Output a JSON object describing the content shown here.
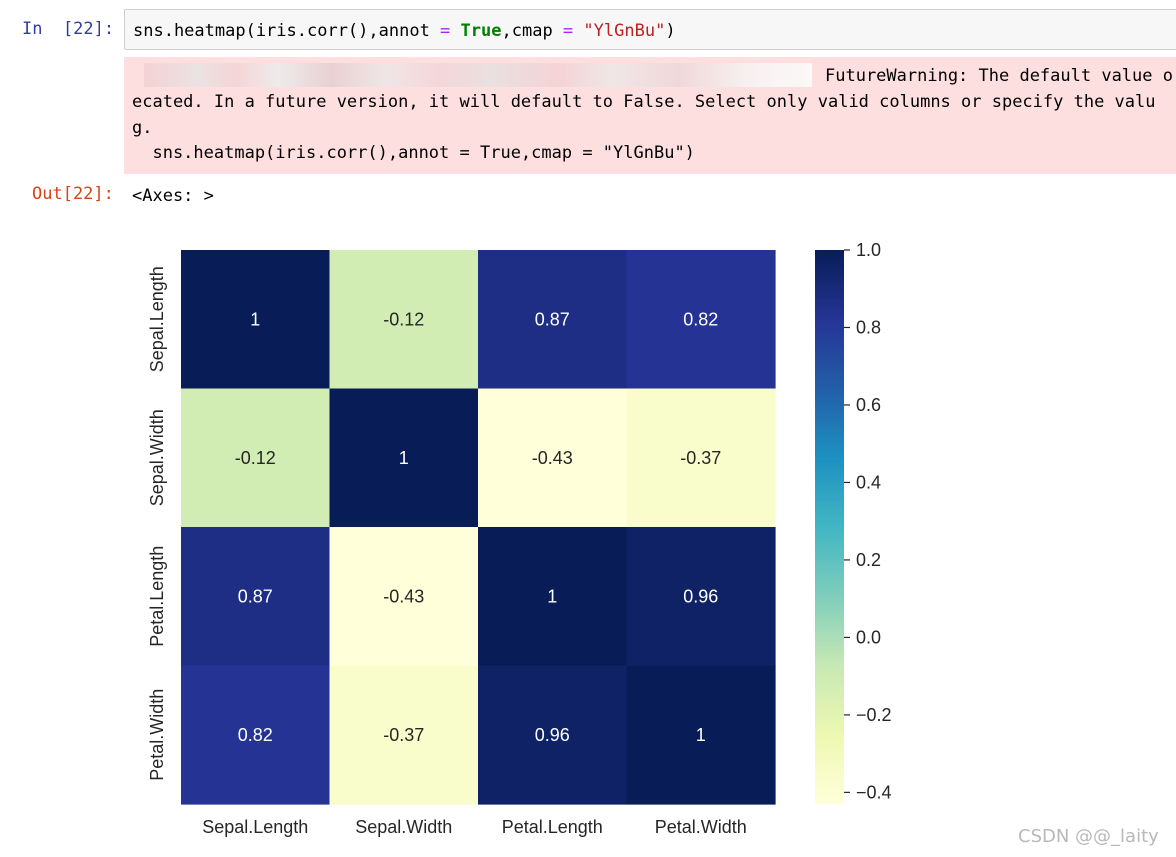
{
  "cell": {
    "in_prompt": "In  [22]:",
    "out_prompt": "Out[22]:",
    "code": {
      "part1": "sns.heatmap(iris.corr(),annot ",
      "eq1": "=",
      "sp1": " ",
      "kw_true": "True",
      "part2": ",cmap ",
      "eq2": "=",
      "sp2": " ",
      "str_cmap": "\"YlGnBu\"",
      "part3": ")"
    },
    "stderr": {
      "line1": "FutureWarning: The default value o",
      "line2": "ecated. In a future version, it will default to False. Select only valid columns or specify the valu",
      "line3": "g.",
      "line4": "  sns.heatmap(iris.corr(),annot = True,cmap = \"YlGnBu\")"
    },
    "output_text": "<Axes: >"
  },
  "chart_data": {
    "type": "heatmap",
    "title": "",
    "xlabel": "",
    "ylabel": "",
    "categories_x": [
      "Sepal.Length",
      "Sepal.Width",
      "Petal.Length",
      "Petal.Width"
    ],
    "categories_y": [
      "Sepal.Length",
      "Sepal.Width",
      "Petal.Length",
      "Petal.Width"
    ],
    "values": [
      [
        1,
        -0.12,
        0.87,
        0.82
      ],
      [
        -0.12,
        1,
        -0.43,
        -0.37
      ],
      [
        0.87,
        -0.43,
        1,
        0.96
      ],
      [
        0.82,
        -0.37,
        0.96,
        1
      ]
    ],
    "annotations": [
      [
        "1",
        "-0.12",
        "0.87",
        "0.82"
      ],
      [
        "-0.12",
        "1",
        "-0.43",
        "-0.37"
      ],
      [
        "0.87",
        "-0.43",
        "1",
        "0.96"
      ],
      [
        "0.82",
        "-0.37",
        "0.96",
        "1"
      ]
    ],
    "colormap": "YlGnBu",
    "vmin": -0.43,
    "vmax": 1.0,
    "colorbar_ticks": [
      1.0,
      0.8,
      0.6,
      0.4,
      0.2,
      0.0,
      -0.2,
      -0.4
    ],
    "colorbar_tick_labels": [
      "1.0",
      "0.8",
      "0.6",
      "0.4",
      "0.2",
      "0.0",
      "−0.2",
      "−0.4"
    ]
  },
  "watermark": "CSDN @@_laity"
}
